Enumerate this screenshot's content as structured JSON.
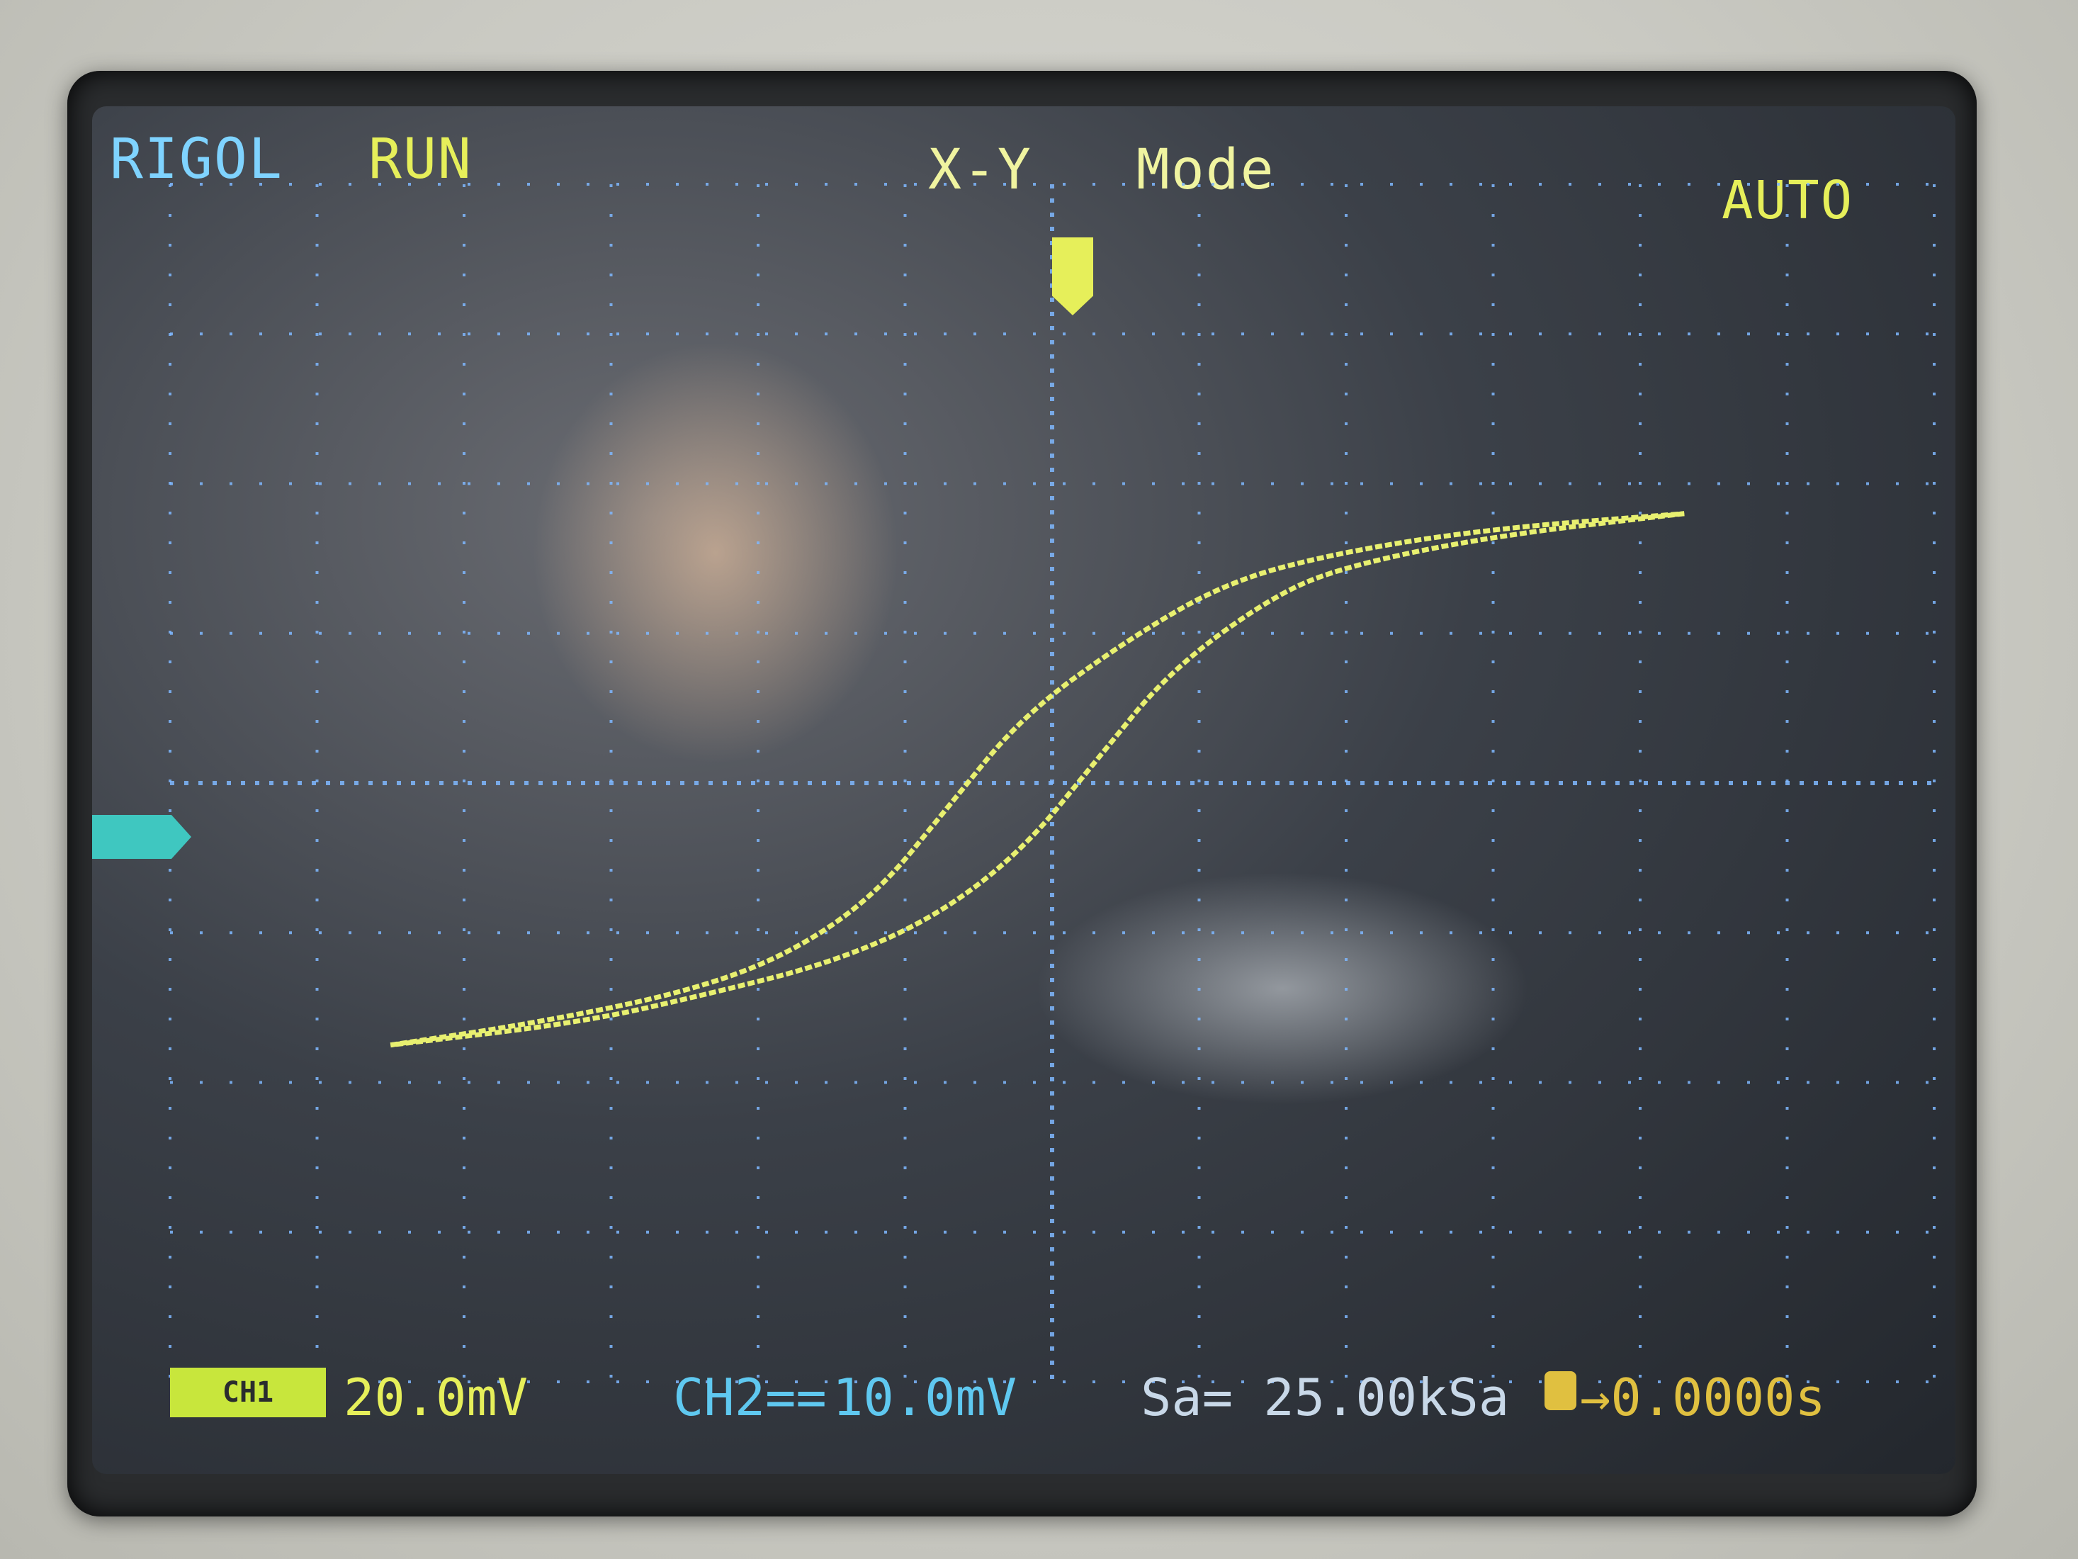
{
  "header": {
    "brand": "RIGOL",
    "run_state": "RUN",
    "mode": "X-Y   Mode",
    "trigger_mode": "AUTO"
  },
  "footer": {
    "ch1_badge": "CH1",
    "ch1_scale": "20.0mV",
    "ch2_label": "CH2==",
    "ch2_scale": "10.0mV",
    "sample_rate": "Sa= 25.00kSa",
    "trigger_offset": "→0.0000s"
  },
  "colors": {
    "ch1": "#e6ef5a",
    "ch2": "#5fc8f0",
    "trace": "#e8f070",
    "grid": "#7fb8ff"
  },
  "chart_data": {
    "type": "line",
    "title": "",
    "xlabel": "",
    "ylabel": "",
    "grid": true,
    "divisions": {
      "x": 12,
      "y": 8
    },
    "xlim": [
      -6,
      6
    ],
    "ylim": [
      -4,
      4
    ],
    "series": [
      {
        "points": [
          [
            -4.5,
            -1.75
          ],
          [
            -3.5,
            -1.6
          ],
          [
            -2.5,
            -1.4
          ],
          [
            -1.8,
            -1.15
          ],
          [
            -1.2,
            -0.75
          ],
          [
            -0.7,
            -0.15
          ],
          [
            -0.2,
            0.45
          ],
          [
            0.5,
            0.95
          ],
          [
            1.2,
            1.35
          ],
          [
            2.0,
            1.55
          ],
          [
            3.0,
            1.7
          ],
          [
            4.3,
            1.8
          ]
        ]
      },
      {
        "points": [
          [
            4.3,
            1.8
          ],
          [
            3.0,
            1.65
          ],
          [
            2.0,
            1.45
          ],
          [
            1.5,
            1.25
          ],
          [
            0.8,
            0.75
          ],
          [
            0.3,
            0.15
          ],
          [
            -0.2,
            -0.45
          ],
          [
            -0.8,
            -0.9
          ],
          [
            -1.5,
            -1.2
          ],
          [
            -2.3,
            -1.4
          ],
          [
            -3.2,
            -1.6
          ],
          [
            -4.5,
            -1.75
          ]
        ]
      }
    ]
  }
}
